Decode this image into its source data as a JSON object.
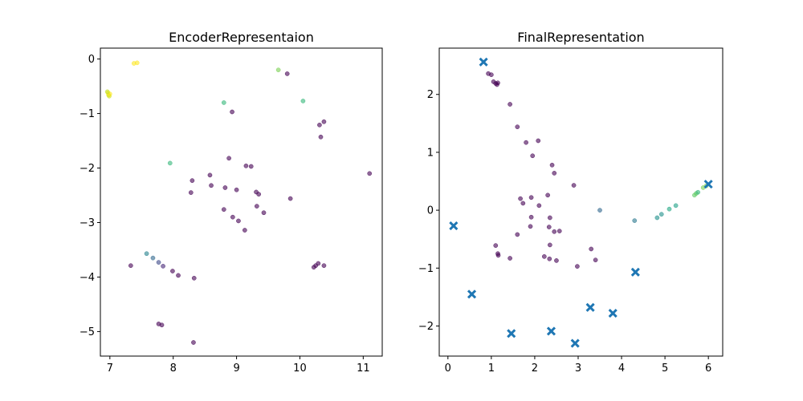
{
  "chart_data": [
    {
      "type": "scatter",
      "title": "EncoderRepresentaion",
      "xlim": [
        6.85,
        11.3
      ],
      "ylim": [
        -5.45,
        0.2
      ],
      "xticks": [
        7,
        8,
        9,
        10,
        11
      ],
      "yticks": [
        0,
        -1,
        -2,
        -3,
        -4,
        -5
      ],
      "xtick_labels": [
        "7",
        "8",
        "9",
        "10",
        "11"
      ],
      "ytick_labels": [
        "0",
        "−1",
        "−2",
        "−3",
        "−4",
        "−5"
      ],
      "grid": false,
      "points": [
        {
          "x": 6.97,
          "y": -0.62,
          "c": "#fde725"
        },
        {
          "x": 6.98,
          "y": -0.66,
          "c": "#dde318"
        },
        {
          "x": 6.99,
          "y": -0.68,
          "c": "#d0e11c"
        },
        {
          "x": 7.0,
          "y": -0.64,
          "c": "#fde725"
        },
        {
          "x": 6.96,
          "y": -0.6,
          "c": "#c2df23"
        },
        {
          "x": 7.38,
          "y": -0.08,
          "c": "#fde725"
        },
        {
          "x": 7.43,
          "y": -0.07,
          "c": "#fde725"
        },
        {
          "x": 9.66,
          "y": -0.2,
          "c": "#7ad151"
        },
        {
          "x": 9.8,
          "y": -0.27,
          "c": "#440154"
        },
        {
          "x": 8.8,
          "y": -0.8,
          "c": "#35b779"
        },
        {
          "x": 10.05,
          "y": -0.77,
          "c": "#35b779"
        },
        {
          "x": 8.93,
          "y": -0.97,
          "c": "#440154"
        },
        {
          "x": 10.38,
          "y": -1.15,
          "c": "#440154"
        },
        {
          "x": 10.31,
          "y": -1.21,
          "c": "#440154"
        },
        {
          "x": 10.33,
          "y": -1.43,
          "c": "#440154"
        },
        {
          "x": 8.88,
          "y": -1.82,
          "c": "#440154"
        },
        {
          "x": 7.95,
          "y": -1.91,
          "c": "#35b779"
        },
        {
          "x": 9.15,
          "y": -1.96,
          "c": "#440154"
        },
        {
          "x": 9.23,
          "y": -1.97,
          "c": "#440154"
        },
        {
          "x": 11.1,
          "y": -2.1,
          "c": "#440154"
        },
        {
          "x": 8.58,
          "y": -2.13,
          "c": "#440154"
        },
        {
          "x": 8.3,
          "y": -2.23,
          "c": "#440154"
        },
        {
          "x": 8.6,
          "y": -2.32,
          "c": "#440154"
        },
        {
          "x": 8.82,
          "y": -2.36,
          "c": "#440154"
        },
        {
          "x": 9.0,
          "y": -2.4,
          "c": "#440154"
        },
        {
          "x": 9.31,
          "y": -2.44,
          "c": "#440154"
        },
        {
          "x": 8.28,
          "y": -2.45,
          "c": "#440154"
        },
        {
          "x": 9.35,
          "y": -2.48,
          "c": "#440154"
        },
        {
          "x": 9.85,
          "y": -2.56,
          "c": "#440154"
        },
        {
          "x": 9.32,
          "y": -2.7,
          "c": "#440154"
        },
        {
          "x": 8.8,
          "y": -2.76,
          "c": "#440154"
        },
        {
          "x": 9.43,
          "y": -2.82,
          "c": "#440154"
        },
        {
          "x": 8.94,
          "y": -2.9,
          "c": "#440154"
        },
        {
          "x": 9.03,
          "y": -2.97,
          "c": "#440154"
        },
        {
          "x": 9.13,
          "y": -3.14,
          "c": "#440154"
        },
        {
          "x": 7.58,
          "y": -3.57,
          "c": "#26828e"
        },
        {
          "x": 7.68,
          "y": -3.65,
          "c": "#31688e"
        },
        {
          "x": 7.77,
          "y": -3.73,
          "c": "#3e4a89"
        },
        {
          "x": 7.84,
          "y": -3.8,
          "c": "#482878"
        },
        {
          "x": 7.33,
          "y": -3.79,
          "c": "#440154"
        },
        {
          "x": 7.99,
          "y": -3.89,
          "c": "#440154"
        },
        {
          "x": 8.08,
          "y": -3.97,
          "c": "#440154"
        },
        {
          "x": 8.33,
          "y": -4.02,
          "c": "#440154"
        },
        {
          "x": 10.29,
          "y": -3.75,
          "c": "#440154"
        },
        {
          "x": 10.25,
          "y": -3.79,
          "c": "#440154"
        },
        {
          "x": 10.22,
          "y": -3.82,
          "c": "#440154"
        },
        {
          "x": 10.38,
          "y": -3.79,
          "c": "#440154"
        },
        {
          "x": 7.77,
          "y": -4.86,
          "c": "#440154"
        },
        {
          "x": 7.82,
          "y": -4.88,
          "c": "#440154"
        },
        {
          "x": 8.32,
          "y": -5.2,
          "c": "#440154"
        }
      ]
    },
    {
      "type": "scatter",
      "title": "FinalRepresentation",
      "xlim": [
        -0.2,
        6.33
      ],
      "ylim": [
        -2.52,
        2.8
      ],
      "xticks": [
        0,
        1,
        2,
        3,
        4,
        5,
        6
      ],
      "yticks": [
        2,
        1,
        0,
        -1,
        -2
      ],
      "xtick_labels": [
        "0",
        "1",
        "2",
        "3",
        "4",
        "5",
        "6"
      ],
      "ytick_labels": [
        "2",
        "1",
        "0",
        "−1",
        "−2"
      ],
      "grid": false,
      "points": [
        {
          "x": 0.93,
          "y": 2.36,
          "c": "#440154"
        },
        {
          "x": 1.0,
          "y": 2.34,
          "c": "#440154"
        },
        {
          "x": 1.05,
          "y": 2.22,
          "c": "#440154"
        },
        {
          "x": 1.1,
          "y": 2.19,
          "c": "#440154"
        },
        {
          "x": 1.13,
          "y": 2.17,
          "c": "#440154"
        },
        {
          "x": 1.15,
          "y": 2.2,
          "c": "#440154"
        },
        {
          "x": 1.43,
          "y": 1.83,
          "c": "#440154"
        },
        {
          "x": 1.6,
          "y": 1.44,
          "c": "#440154"
        },
        {
          "x": 1.8,
          "y": 1.17,
          "c": "#440154"
        },
        {
          "x": 2.08,
          "y": 1.2,
          "c": "#440154"
        },
        {
          "x": 1.95,
          "y": 0.94,
          "c": "#440154"
        },
        {
          "x": 2.4,
          "y": 0.78,
          "c": "#440154"
        },
        {
          "x": 2.45,
          "y": 0.64,
          "c": "#440154"
        },
        {
          "x": 2.9,
          "y": 0.43,
          "c": "#440154"
        },
        {
          "x": 2.3,
          "y": 0.26,
          "c": "#440154"
        },
        {
          "x": 1.67,
          "y": 0.2,
          "c": "#440154"
        },
        {
          "x": 1.92,
          "y": 0.22,
          "c": "#440154"
        },
        {
          "x": 1.73,
          "y": 0.12,
          "c": "#440154"
        },
        {
          "x": 2.1,
          "y": 0.08,
          "c": "#440154"
        },
        {
          "x": 3.5,
          "y": 0.0,
          "c": "#31688e"
        },
        {
          "x": 1.92,
          "y": -0.12,
          "c": "#440154"
        },
        {
          "x": 2.35,
          "y": -0.13,
          "c": "#440154"
        },
        {
          "x": 1.9,
          "y": -0.28,
          "c": "#440154"
        },
        {
          "x": 2.33,
          "y": -0.29,
          "c": "#440154"
        },
        {
          "x": 2.45,
          "y": -0.37,
          "c": "#440154"
        },
        {
          "x": 2.57,
          "y": -0.36,
          "c": "#440154"
        },
        {
          "x": 1.6,
          "y": -0.42,
          "c": "#440154"
        },
        {
          "x": 1.1,
          "y": -0.61,
          "c": "#440154"
        },
        {
          "x": 2.35,
          "y": -0.6,
          "c": "#440154"
        },
        {
          "x": 3.3,
          "y": -0.67,
          "c": "#440154"
        },
        {
          "x": 1.15,
          "y": -0.75,
          "c": "#440154"
        },
        {
          "x": 1.16,
          "y": -0.78,
          "c": "#440154"
        },
        {
          "x": 1.43,
          "y": -0.83,
          "c": "#440154"
        },
        {
          "x": 2.22,
          "y": -0.8,
          "c": "#440154"
        },
        {
          "x": 2.34,
          "y": -0.84,
          "c": "#440154"
        },
        {
          "x": 2.5,
          "y": -0.87,
          "c": "#440154"
        },
        {
          "x": 3.4,
          "y": -0.86,
          "c": "#440154"
        },
        {
          "x": 2.98,
          "y": -0.97,
          "c": "#440154"
        },
        {
          "x": 4.3,
          "y": -0.18,
          "c": "#2a788e"
        },
        {
          "x": 4.82,
          "y": -0.13,
          "c": "#21918c"
        },
        {
          "x": 4.92,
          "y": -0.07,
          "c": "#21918c"
        },
        {
          "x": 5.1,
          "y": 0.02,
          "c": "#22a884"
        },
        {
          "x": 5.25,
          "y": 0.08,
          "c": "#1fa187"
        },
        {
          "x": 5.68,
          "y": 0.26,
          "c": "#5ec962"
        },
        {
          "x": 5.72,
          "y": 0.29,
          "c": "#5ec962"
        },
        {
          "x": 5.76,
          "y": 0.31,
          "c": "#35b779"
        },
        {
          "x": 5.88,
          "y": 0.39,
          "c": "#7ad151"
        },
        {
          "x": 5.95,
          "y": 0.42,
          "c": "#7ad151"
        }
      ],
      "markers": [
        {
          "x": 0.82,
          "y": 2.56
        },
        {
          "x": 6.0,
          "y": 0.45
        },
        {
          "x": 0.13,
          "y": -0.27
        },
        {
          "x": 0.55,
          "y": -1.45
        },
        {
          "x": 4.32,
          "y": -1.07
        },
        {
          "x": 3.28,
          "y": -1.68
        },
        {
          "x": 3.8,
          "y": -1.78
        },
        {
          "x": 1.46,
          "y": -2.13
        },
        {
          "x": 2.38,
          "y": -2.09
        },
        {
          "x": 2.93,
          "y": -2.3
        }
      ],
      "marker_color": "#1f77b4"
    }
  ]
}
